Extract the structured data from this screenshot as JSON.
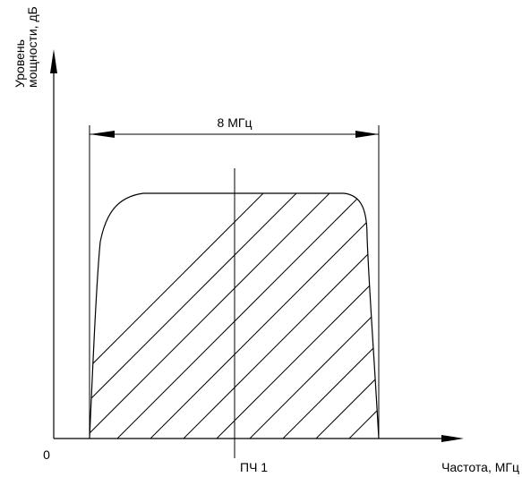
{
  "y_axis_label_line1": "Уровень",
  "y_axis_label_line2": "мощности, дБ",
  "x_axis_label": "Частота, МГц",
  "origin_label": "0",
  "bandwidth_label": "8 МГц",
  "center_label": "ПЧ 1",
  "colors": {
    "line": "#000000",
    "background": "#ffffff"
  }
}
